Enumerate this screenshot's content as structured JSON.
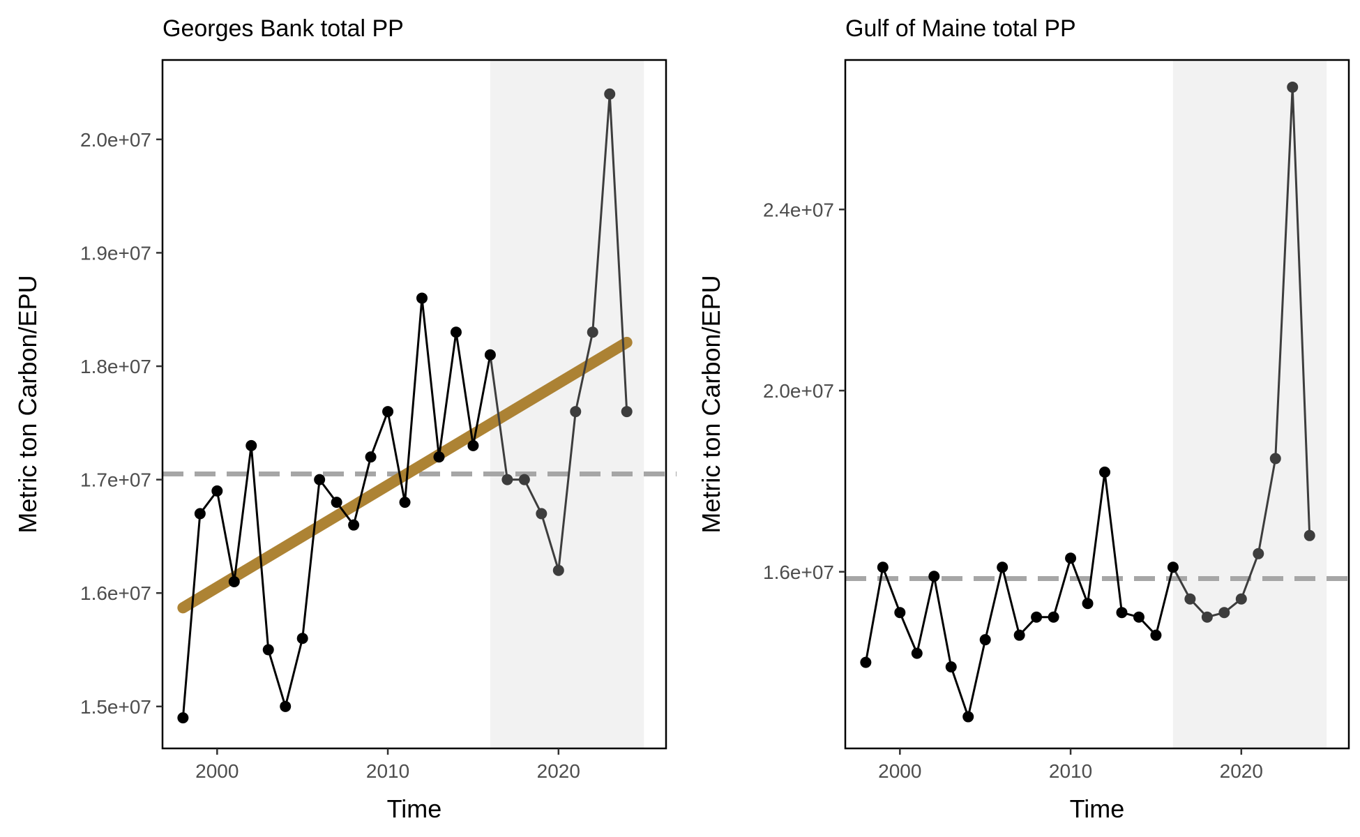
{
  "chart_data": [
    {
      "type": "line",
      "title": "Georges Bank total PP",
      "xlabel": "Time",
      "ylabel": "Metric ton Carbon/EPU",
      "xlim": [
        1996.8,
        2026.3
      ],
      "ylim": [
        14630000,
        20700000
      ],
      "xticks": [
        2000,
        2010,
        2020
      ],
      "xtick_labels": [
        "2000",
        "2010",
        "2020"
      ],
      "yticks": [
        15000000,
        16000000,
        17000000,
        18000000,
        19000000,
        20000000
      ],
      "ytick_labels": [
        "1.5e+07",
        "1.6e+07",
        "1.7e+07",
        "1.8e+07",
        "1.9e+07",
        "2.0e+07"
      ],
      "highlight_span": [
        2016,
        2025
      ],
      "mean_line": 17050000,
      "trend": {
        "x": [
          1998,
          2024
        ],
        "y": [
          15870000,
          18210000
        ]
      },
      "x": [
        1998,
        1999,
        2000,
        2001,
        2002,
        2003,
        2004,
        2005,
        2006,
        2007,
        2008,
        2009,
        2010,
        2011,
        2012,
        2013,
        2014,
        2015,
        2016,
        2017,
        2018,
        2019,
        2020,
        2021,
        2022,
        2023,
        2024
      ],
      "values": [
        14900000,
        16700000,
        16900000,
        16100000,
        17300000,
        15500000,
        15000000,
        15600000,
        17000000,
        16800000,
        16600000,
        17200000,
        17600000,
        16800000,
        18600000,
        17200000,
        18300000,
        17300000,
        18100000,
        17000000,
        17000000,
        16700000,
        16200000,
        17600000,
        18300000,
        20400000,
        17600000
      ],
      "colors": {
        "series": "#000000",
        "recent": "#3d3d3d",
        "trend": "#a97d2a",
        "mean": "#a6a6a6",
        "shade": "#f2f2f2"
      }
    },
    {
      "type": "line",
      "title": "Gulf of Maine total PP",
      "xlabel": "Time",
      "ylabel": "Metric ton Carbon/EPU",
      "xlim": [
        1996.8,
        2026.3
      ],
      "ylim": [
        12100000,
        27300000
      ],
      "xticks": [
        2000,
        2010,
        2020
      ],
      "xtick_labels": [
        "2000",
        "2010",
        "2020"
      ],
      "yticks": [
        16000000,
        20000000,
        24000000
      ],
      "ytick_labels": [
        "1.6e+07",
        "2.0e+07",
        "2.4e+07"
      ],
      "highlight_span": [
        2016,
        2025
      ],
      "mean_line": 15850000,
      "x": [
        1998,
        1999,
        2000,
        2001,
        2002,
        2003,
        2004,
        2005,
        2006,
        2007,
        2008,
        2009,
        2010,
        2011,
        2012,
        2013,
        2014,
        2015,
        2016,
        2017,
        2018,
        2019,
        2020,
        2021,
        2022,
        2023,
        2024
      ],
      "values": [
        14000000,
        16100000,
        15100000,
        14200000,
        15900000,
        13900000,
        12800000,
        14500000,
        16100000,
        14600000,
        15000000,
        15000000,
        16300000,
        15300000,
        18200000,
        15100000,
        15000000,
        14600000,
        16100000,
        15400000,
        15000000,
        15100000,
        15400000,
        16400000,
        18500000,
        26700000,
        16800000
      ],
      "colors": {
        "series": "#000000",
        "recent": "#3d3d3d",
        "mean": "#a6a6a6",
        "shade": "#f2f2f2"
      }
    }
  ]
}
